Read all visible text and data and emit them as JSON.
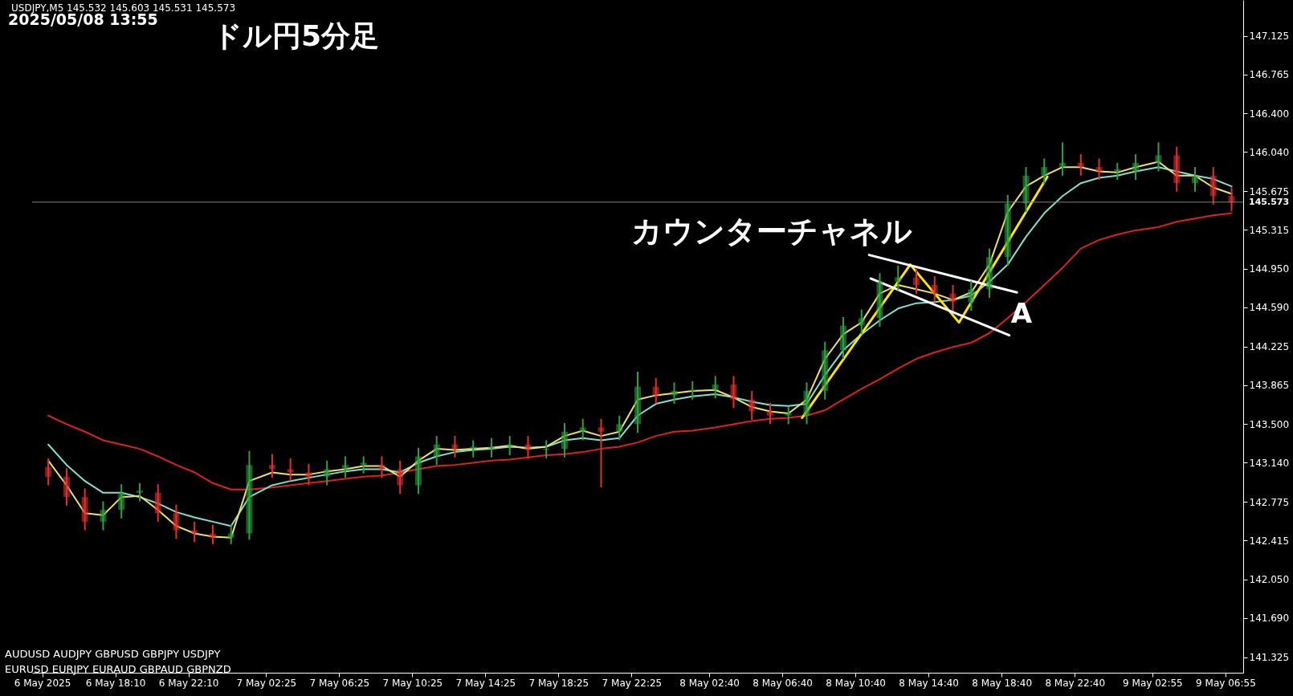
{
  "chart_data": {
    "type": "candlestick",
    "title": "ドル円5分足",
    "subtitle": "2025/05/08 13:55",
    "annotations": [
      "USDJPY,M5  145.532 145.603 145.531 145.573",
      "カウンターチャネル",
      "AUDUSD AUDJPY  GBPUSD GBPJPY  USDJPY",
      "EURUSD EURJPY  EURAUD GBPAUD GBPNZD",
      {
        "text": "A",
        "x": "2025-05-08T19:05",
        "y": 144.52
      }
    ],
    "x": [
      "2025-05-06T14:30",
      "2025-05-06T15:30",
      "2025-05-06T16:30",
      "2025-05-06T17:30",
      "2025-05-06T18:30",
      "2025-05-06T19:30",
      "2025-05-06T20:30",
      "2025-05-06T21:30",
      "2025-05-06T22:30",
      "2025-05-06T23:30",
      "2025-05-07T00:30",
      "2025-05-07T01:30",
      "2025-05-07T02:45",
      "2025-05-07T03:45",
      "2025-05-07T04:45",
      "2025-05-07T05:45",
      "2025-05-07T06:45",
      "2025-05-07T07:45",
      "2025-05-07T08:45",
      "2025-05-07T09:45",
      "2025-05-07T10:45",
      "2025-05-07T11:45",
      "2025-05-07T12:45",
      "2025-05-07T13:45",
      "2025-05-07T14:45",
      "2025-05-07T15:45",
      "2025-05-07T16:45",
      "2025-05-07T17:45",
      "2025-05-07T18:45",
      "2025-05-07T19:45",
      "2025-05-07T20:45",
      "2025-05-07T21:45",
      "2025-05-07T22:45",
      "2025-05-07T23:45",
      "2025-05-08T00:45",
      "2025-05-08T01:45",
      "2025-05-08T03:00",
      "2025-05-08T04:00",
      "2025-05-08T05:00",
      "2025-05-08T06:00",
      "2025-05-08T07:00",
      "2025-05-08T08:00",
      "2025-05-08T09:00",
      "2025-05-08T10:00",
      "2025-05-08T11:00",
      "2025-05-08T12:00",
      "2025-05-08T13:00",
      "2025-05-08T14:00",
      "2025-05-08T15:00",
      "2025-05-08T16:00",
      "2025-05-08T17:00",
      "2025-05-08T18:00",
      "2025-05-08T19:00",
      "2025-05-08T20:00",
      "2025-05-08T21:00",
      "2025-05-08T22:00",
      "2025-05-08T23:00",
      "2025-05-09T00:00",
      "2025-05-09T01:00",
      "2025-05-09T02:00",
      "2025-05-09T03:15",
      "2025-05-09T04:15",
      "2025-05-09T05:15",
      "2025-05-09T06:15",
      "2025-05-09T07:15"
    ],
    "ohlc": [
      [
        143.1,
        143.18,
        142.93,
        143.01
      ],
      [
        143.01,
        143.09,
        142.74,
        142.82
      ],
      [
        142.82,
        142.9,
        142.51,
        142.59
      ],
      [
        142.59,
        142.78,
        142.51,
        142.7
      ],
      [
        142.7,
        142.94,
        142.62,
        142.86
      ],
      [
        142.86,
        142.95,
        142.78,
        142.88
      ],
      [
        142.86,
        142.94,
        142.59,
        142.67
      ],
      [
        142.67,
        142.75,
        142.43,
        142.51
      ],
      [
        142.51,
        142.59,
        142.4,
        142.48
      ],
      [
        142.48,
        142.56,
        142.38,
        142.44
      ],
      [
        142.44,
        142.56,
        142.38,
        142.48
      ],
      [
        142.48,
        143.25,
        142.42,
        143.12
      ],
      [
        143.12,
        143.22,
        143.0,
        143.08
      ],
      [
        143.08,
        143.18,
        142.97,
        143.05
      ],
      [
        143.05,
        143.13,
        142.93,
        143.01
      ],
      [
        143.01,
        143.16,
        142.93,
        143.08
      ],
      [
        143.08,
        143.2,
        143.0,
        143.12
      ],
      [
        143.12,
        143.2,
        143.04,
        143.14
      ],
      [
        143.12,
        143.2,
        143.0,
        143.08
      ],
      [
        143.08,
        143.16,
        142.85,
        142.93
      ],
      [
        142.93,
        143.28,
        142.85,
        143.2
      ],
      [
        143.2,
        143.39,
        143.12,
        143.31
      ],
      [
        143.31,
        143.39,
        143.19,
        143.27
      ],
      [
        143.27,
        143.35,
        143.19,
        143.29
      ],
      [
        143.27,
        143.37,
        143.19,
        143.29
      ],
      [
        143.29,
        143.39,
        143.21,
        143.31
      ],
      [
        143.31,
        143.39,
        143.18,
        143.26
      ],
      [
        143.26,
        143.35,
        143.18,
        143.27
      ],
      [
        143.27,
        143.51,
        143.19,
        143.43
      ],
      [
        143.43,
        143.55,
        143.35,
        143.47
      ],
      [
        143.47,
        143.55,
        142.91,
        143.43
      ],
      [
        143.43,
        143.58,
        143.35,
        143.5
      ],
      [
        143.5,
        143.99,
        143.42,
        143.85
      ],
      [
        143.85,
        143.93,
        143.69,
        143.77
      ],
      [
        143.77,
        143.89,
        143.69,
        143.81
      ],
      [
        143.81,
        143.9,
        143.73,
        143.82
      ],
      [
        143.82,
        143.95,
        143.74,
        143.87
      ],
      [
        143.87,
        143.95,
        143.65,
        143.73
      ],
      [
        143.73,
        143.81,
        143.54,
        143.62
      ],
      [
        143.62,
        143.7,
        143.5,
        143.58
      ],
      [
        143.58,
        143.66,
        143.5,
        143.6
      ],
      [
        143.58,
        143.89,
        143.5,
        143.81
      ],
      [
        143.81,
        144.27,
        143.73,
        144.19
      ],
      [
        144.19,
        144.5,
        144.11,
        144.42
      ],
      [
        144.42,
        144.57,
        144.34,
        144.49
      ],
      [
        144.49,
        144.91,
        144.41,
        144.83
      ],
      [
        144.83,
        144.98,
        144.75,
        144.87
      ],
      [
        144.87,
        144.95,
        144.72,
        144.8
      ],
      [
        144.8,
        144.88,
        144.64,
        144.72
      ],
      [
        144.72,
        144.8,
        144.56,
        144.64
      ],
      [
        144.64,
        144.84,
        144.56,
        144.76
      ],
      [
        144.76,
        145.14,
        144.68,
        145.06
      ],
      [
        145.06,
        145.64,
        144.98,
        145.56
      ],
      [
        145.56,
        145.9,
        145.48,
        145.82
      ],
      [
        145.82,
        145.98,
        145.74,
        145.9
      ],
      [
        145.9,
        146.13,
        145.82,
        145.94
      ],
      [
        145.94,
        146.02,
        145.82,
        145.9
      ],
      [
        145.9,
        145.98,
        145.78,
        145.86
      ],
      [
        145.86,
        145.94,
        145.78,
        145.88
      ],
      [
        145.86,
        146.02,
        145.78,
        145.94
      ],
      [
        145.94,
        146.13,
        145.86,
        146.01
      ],
      [
        146.01,
        146.09,
        145.67,
        145.75
      ],
      [
        145.75,
        145.9,
        145.67,
        145.82
      ],
      [
        145.82,
        145.9,
        145.55,
        145.63
      ],
      [
        145.63,
        145.71,
        145.49,
        145.57
      ]
    ],
    "series": [
      {
        "type": "line",
        "color": "#e02020",
        "values": [
          143.58,
          143.5,
          143.43,
          143.35,
          143.31,
          143.27,
          143.2,
          143.12,
          143.05,
          142.95,
          142.89,
          142.89,
          142.91,
          142.93,
          142.95,
          142.97,
          142.99,
          143.01,
          143.02,
          143.05,
          143.08,
          143.11,
          143.12,
          143.14,
          143.16,
          143.17,
          143.19,
          143.21,
          143.22,
          143.24,
          143.27,
          143.29,
          143.33,
          143.39,
          143.43,
          143.44,
          143.47,
          143.5,
          143.53,
          143.55,
          143.56,
          143.58,
          143.63,
          143.73,
          143.83,
          143.92,
          144.02,
          144.11,
          144.17,
          144.22,
          144.26,
          144.35,
          144.49,
          144.64,
          144.8,
          144.96,
          145.14,
          145.22,
          145.27,
          145.31,
          145.34,
          145.39,
          145.42,
          145.45,
          145.47
        ]
      },
      {
        "type": "line",
        "color": "#80e0d0",
        "values": [
          143.31,
          143.12,
          142.97,
          142.86,
          142.86,
          142.82,
          142.76,
          142.68,
          142.63,
          142.59,
          142.55,
          142.82,
          142.93,
          142.97,
          143.0,
          143.03,
          143.06,
          143.08,
          143.08,
          143.05,
          143.14,
          143.2,
          143.24,
          143.26,
          143.27,
          143.29,
          143.28,
          143.29,
          143.35,
          143.37,
          143.35,
          143.37,
          143.58,
          143.69,
          143.73,
          143.76,
          143.78,
          143.75,
          143.71,
          143.68,
          143.67,
          143.69,
          143.96,
          144.19,
          144.34,
          144.47,
          144.58,
          144.63,
          144.64,
          144.66,
          144.7,
          144.83,
          144.99,
          145.25,
          145.47,
          145.63,
          145.75,
          145.8,
          145.82,
          145.86,
          145.9,
          145.86,
          145.82,
          145.79,
          145.72
        ]
      },
      {
        "type": "line",
        "color": "#f0e068",
        "values": [
          143.16,
          142.93,
          142.67,
          142.65,
          142.82,
          142.83,
          142.7,
          142.55,
          142.48,
          142.45,
          142.44,
          142.97,
          143.05,
          143.03,
          143.03,
          143.06,
          143.08,
          143.11,
          143.11,
          143.01,
          143.16,
          143.27,
          143.26,
          143.27,
          143.28,
          143.3,
          143.27,
          143.29,
          143.39,
          143.44,
          143.39,
          143.43,
          143.73,
          143.77,
          143.79,
          143.81,
          143.82,
          143.75,
          143.66,
          143.62,
          143.6,
          143.73,
          144.11,
          144.34,
          144.45,
          144.72,
          144.8,
          144.76,
          144.72,
          144.66,
          144.73,
          144.99,
          145.48,
          145.72,
          145.82,
          145.9,
          145.9,
          145.86,
          145.85,
          145.9,
          145.95,
          145.82,
          145.82,
          145.71,
          145.65
        ]
      },
      {
        "type": "line",
        "color": "#ffe600",
        "x": [
          "2025-05-08T07:45",
          "2025-05-08T13:40",
          "2025-05-08T16:20",
          "2025-05-08T21:10"
        ],
        "values": [
          143.56,
          144.99,
          144.45,
          145.81
        ]
      },
      {
        "type": "line",
        "color": "#ffffff",
        "x": [
          "2025-05-08T11:25",
          "2025-05-08T19:30"
        ],
        "values": [
          145.08,
          144.73
        ]
      },
      {
        "type": "line",
        "color": "#ffffff",
        "x": [
          "2025-05-08T11:30",
          "2025-05-08T19:05"
        ],
        "values": [
          144.86,
          144.33
        ]
      }
    ],
    "xlim": [
      "2025-05-06T13:50",
      "2025-05-09T07:40"
    ],
    "ylim": [
      141.18,
      147.46
    ],
    "xticks": [
      {
        "value": "2025-05-06T14:10",
        "label": "6 May 2025"
      },
      {
        "value": "2025-05-06T18:10",
        "label": "6 May 18:10"
      },
      {
        "value": "2025-05-06T22:10",
        "label": "6 May 22:10"
      },
      {
        "value": "2025-05-07T02:25",
        "label": "7 May 02:25"
      },
      {
        "value": "2025-05-07T06:25",
        "label": "7 May 06:25"
      },
      {
        "value": "2025-05-07T10:25",
        "label": "7 May 10:25"
      },
      {
        "value": "2025-05-07T14:25",
        "label": "7 May 14:25"
      },
      {
        "value": "2025-05-07T18:25",
        "label": "7 May 18:25"
      },
      {
        "value": "2025-05-07T22:25",
        "label": "7 May 22:25"
      },
      {
        "value": "2025-05-08T02:40",
        "label": "8 May 02:40"
      },
      {
        "value": "2025-05-08T06:40",
        "label": "8 May 06:40"
      },
      {
        "value": "2025-05-08T10:40",
        "label": "8 May 10:40"
      },
      {
        "value": "2025-05-08T14:40",
        "label": "8 May 14:40"
      },
      {
        "value": "2025-05-08T18:40",
        "label": "8 May 18:40"
      },
      {
        "value": "2025-05-08T22:40",
        "label": "8 May 22:40"
      },
      {
        "value": "2025-05-09T02:55",
        "label": "9 May 02:55"
      },
      {
        "value": "2025-05-09T06:55",
        "label": "9 May 06:55"
      }
    ],
    "yticks": [
      {
        "value": 141.325,
        "label": "141.325"
      },
      {
        "value": 141.69,
        "label": "141.690"
      },
      {
        "value": 142.05,
        "label": "142.050"
      },
      {
        "value": 142.415,
        "label": "142.415"
      },
      {
        "value": 142.775,
        "label": "142.775"
      },
      {
        "value": 143.14,
        "label": "143.140"
      },
      {
        "value": 143.5,
        "label": "143.500"
      },
      {
        "value": 143.865,
        "label": "143.865"
      },
      {
        "value": 144.225,
        "label": "144.225"
      },
      {
        "value": 144.59,
        "label": "144.590"
      },
      {
        "value": 144.95,
        "label": "144.950"
      },
      {
        "value": 145.315,
        "label": "145.315"
      },
      {
        "value": 145.675,
        "label": "145.675"
      },
      {
        "value": 146.04,
        "label": "146.040"
      },
      {
        "value": 146.4,
        "label": "146.400"
      },
      {
        "value": 146.765,
        "label": "146.765"
      },
      {
        "value": 147.125,
        "label": "147.125"
      }
    ],
    "ref_lines": [
      {
        "axis": "y",
        "value": 145.573,
        "label": "145.573",
        "color": "#808080"
      }
    ]
  }
}
